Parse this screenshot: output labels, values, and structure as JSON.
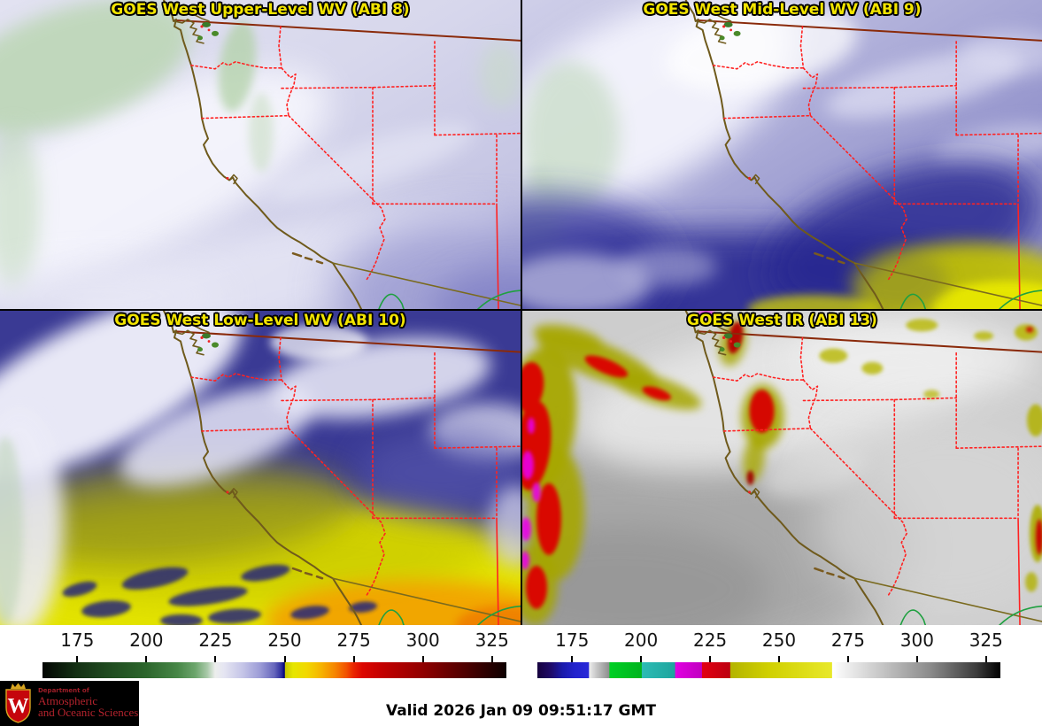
{
  "panels": [
    {
      "id": "abi8",
      "title": "GOES West Upper-Level WV (ABI 8)"
    },
    {
      "id": "abi9",
      "title": "GOES West Mid-Level WV (ABI 9)"
    },
    {
      "id": "abi10",
      "title": "GOES West Low-Level WV (ABI 10)"
    },
    {
      "id": "abi13",
      "title": "GOES West IR (ABI 13)"
    }
  ],
  "colorbar_left": {
    "name": "water-vapor-colorbar",
    "tick_labels": [
      "175",
      "200",
      "225",
      "250",
      "275",
      "300",
      "325"
    ],
    "gradient": [
      [
        0,
        "#030603"
      ],
      [
        4,
        "#0c1d0c"
      ],
      [
        7.4,
        "#143114"
      ],
      [
        14,
        "#1f4a1f"
      ],
      [
        22.3,
        "#2c662c"
      ],
      [
        29,
        "#468646"
      ],
      [
        33,
        "#6da66d"
      ],
      [
        35.5,
        "#a9c9a9"
      ],
      [
        37.2,
        "#eceeec"
      ],
      [
        39,
        "#e6e6f2"
      ],
      [
        43,
        "#c6c6e8"
      ],
      [
        47,
        "#9b9bd6"
      ],
      [
        50,
        "#6666bc"
      ],
      [
        51.5,
        "#2e2e9e"
      ],
      [
        52.2,
        "#000072"
      ],
      [
        52.3,
        "#c6c600"
      ],
      [
        54,
        "#e6e600"
      ],
      [
        57,
        "#f2d800"
      ],
      [
        60,
        "#f6b400"
      ],
      [
        63,
        "#f68600"
      ],
      [
        65.5,
        "#f25200"
      ],
      [
        67,
        "#ea2600"
      ],
      [
        69,
        "#dc0600"
      ],
      [
        73,
        "#c40000"
      ],
      [
        78,
        "#a80000"
      ],
      [
        82,
        "#900000"
      ],
      [
        87,
        "#6c0000"
      ],
      [
        92,
        "#480000"
      ],
      [
        96.8,
        "#240000"
      ],
      [
        100,
        "#0e0000"
      ]
    ]
  },
  "colorbar_right": {
    "name": "ir-colorbar",
    "tick_labels": [
      "175",
      "200",
      "225",
      "250",
      "275",
      "300",
      "325"
    ],
    "gradient": [
      [
        0,
        "#16013e"
      ],
      [
        3,
        "#1f0b6a"
      ],
      [
        5.4,
        "#1a1aaa"
      ],
      [
        8,
        "#2222cc"
      ],
      [
        11.1,
        "#2828d8"
      ],
      [
        11.2,
        "#ececec"
      ],
      [
        13,
        "#c2c2c2"
      ],
      [
        15.5,
        "#8e8e8e"
      ],
      [
        15.6,
        "#00d024"
      ],
      [
        22.5,
        "#00b41e"
      ],
      [
        22.6,
        "#2cbcb4"
      ],
      [
        29.7,
        "#1ea49e"
      ],
      [
        29.8,
        "#e200e2"
      ],
      [
        35.5,
        "#c000c0"
      ],
      [
        35.6,
        "#e20012"
      ],
      [
        41.6,
        "#bc0010"
      ],
      [
        41.7,
        "#b4b400"
      ],
      [
        50,
        "#d0d000"
      ],
      [
        63.6,
        "#e8e82a"
      ],
      [
        63.7,
        "#ffffff"
      ],
      [
        75,
        "#c2c2c2"
      ],
      [
        85,
        "#8a8a8a"
      ],
      [
        95,
        "#3a3a3a"
      ],
      [
        100,
        "#000000"
      ]
    ]
  },
  "footer": {
    "valid": "Valid 2026 Jan 09 09:51:17 GMT"
  },
  "logo": {
    "dept": "Department of",
    "line2": "Atmospheric",
    "line3": "and Oceanic Sciences",
    "crest_letter": "W"
  }
}
